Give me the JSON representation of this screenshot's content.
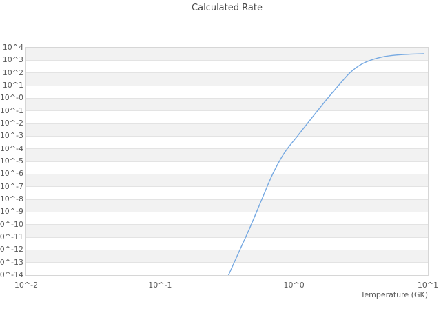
{
  "title": "Calculated Rate",
  "x_axis": {
    "label": "Temperature (GK)",
    "ticks": [
      "10^-2",
      "10^-1",
      "10^0",
      "10^1"
    ]
  },
  "y_axis": {
    "ticks": [
      "10^4",
      "10^3",
      "10^2",
      "10^1",
      "10^-0",
      "10^-1",
      "10^-2",
      "10^-3",
      "10^-4",
      "10^-5",
      "10^-6",
      "10^-7",
      "10^-8",
      "10^-9",
      "10^-10",
      "10^-11",
      "10^-12",
      "10^-13",
      "10^-14"
    ]
  },
  "colors": {
    "line": "#76a9e2",
    "band_gray": "#f2f2f2",
    "band_white": "#ffffff",
    "gridline": "#e3e3e3",
    "plot_border": "#d6d6d6",
    "tick_text": "#5a5a5a",
    "title_text": "#4a4a4a"
  },
  "chart_data": {
    "type": "line",
    "title": "Calculated Rate",
    "xlabel": "Temperature (GK)",
    "ylabel": "",
    "x_scale": "log",
    "y_scale": "log",
    "xlim_log10": [
      -2,
      1
    ],
    "ylim_log10": [
      -14,
      4
    ],
    "grid": "horizontal-bands-alternating",
    "legend": "none",
    "series": [
      {
        "name": "calculated-rate",
        "log10_points": [
          [
            -0.489,
            -14.0
          ],
          [
            -0.4,
            -11.9
          ],
          [
            -0.329,
            -10.24
          ],
          [
            -0.24,
            -8.0
          ],
          [
            -0.159,
            -6.0
          ],
          [
            -0.07,
            -4.3
          ],
          [
            0.026,
            -3.0
          ],
          [
            0.13,
            -1.6
          ],
          [
            0.252,
            0.0
          ],
          [
            0.34,
            1.1
          ],
          [
            0.417,
            2.0
          ],
          [
            0.49,
            2.6
          ],
          [
            0.572,
            3.0
          ],
          [
            0.68,
            3.3
          ],
          [
            0.8,
            3.44
          ],
          [
            0.97,
            3.51
          ]
        ]
      }
    ]
  }
}
